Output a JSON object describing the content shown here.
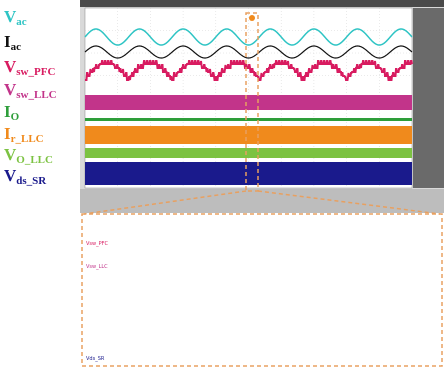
{
  "labels": [
    {
      "main": "V",
      "sub": "ac",
      "color": "#2ec4c4"
    },
    {
      "main": "I",
      "sub": "ac",
      "color": "#111111"
    },
    {
      "main": "V",
      "sub": "sw_PFC",
      "color": "#d81b60"
    },
    {
      "main": "V",
      "sub": "sw_LLC",
      "color": "#c2348a"
    },
    {
      "main": "I",
      "sub": "O",
      "color": "#2e9e3a"
    },
    {
      "main": "I",
      "sub": "r_LLC",
      "color": "#f08a1c"
    },
    {
      "main": "V",
      "sub": "O_LLC",
      "color": "#7cc242"
    },
    {
      "main": "V",
      "sub": "ds_SR",
      "color": "#1a1a8c"
    }
  ],
  "scope_tags": [
    "Vsw_PFC",
    "Vsw_LLC",
    "Vds_SR"
  ]
}
